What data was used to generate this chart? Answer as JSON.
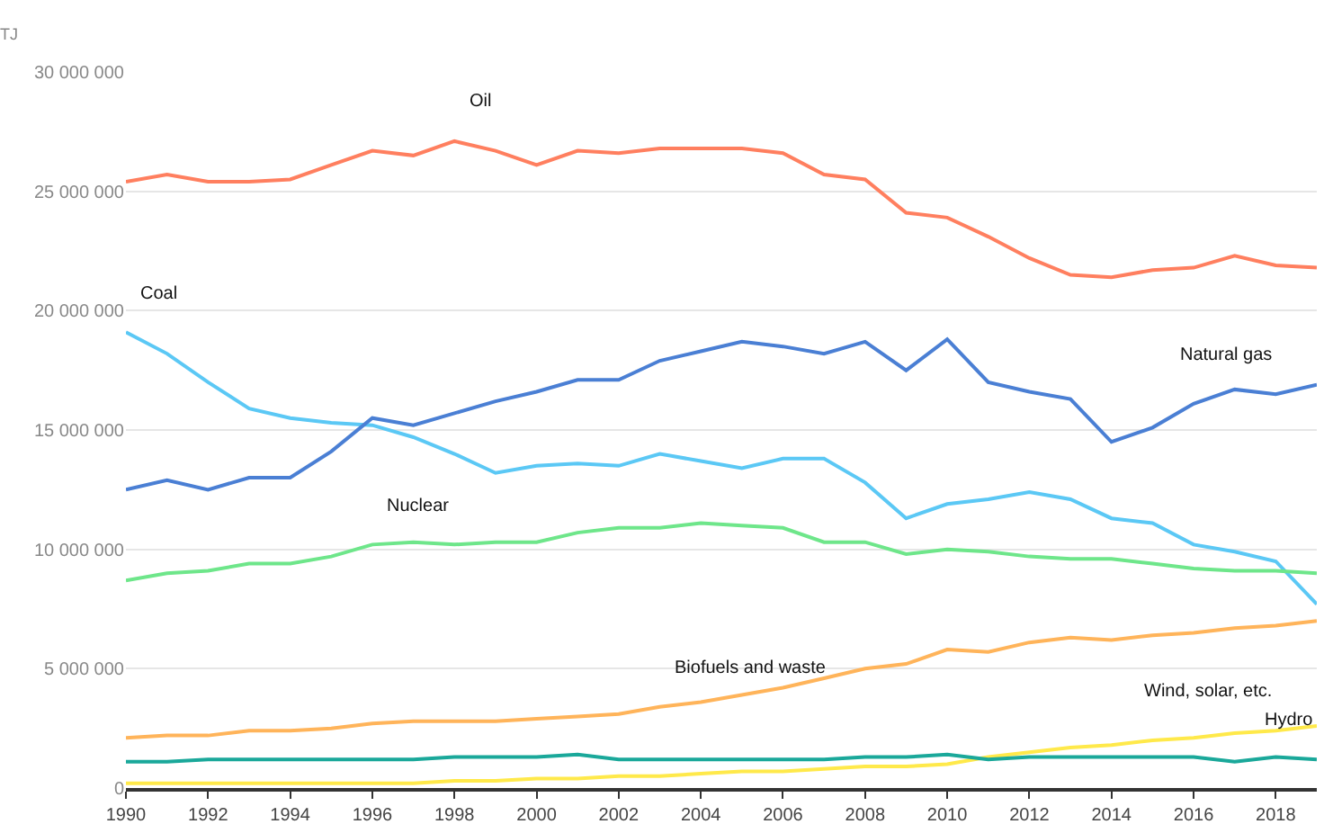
{
  "chart_data": {
    "type": "line",
    "ylabel": "TJ",
    "x": [
      1990,
      1991,
      1992,
      1993,
      1994,
      1995,
      1996,
      1997,
      1998,
      1999,
      2000,
      2001,
      2002,
      2003,
      2004,
      2005,
      2006,
      2007,
      2008,
      2009,
      2010,
      2011,
      2012,
      2013,
      2014,
      2015,
      2016,
      2017,
      2018,
      2019
    ],
    "series": [
      {
        "color": "#ff7f5f",
        "values": [
          25400000,
          25700000,
          25400000,
          25400000,
          25500000,
          26100000,
          26700000,
          26500000,
          27100000,
          26700000,
          26100000,
          26700000,
          26600000,
          26800000,
          26800000,
          26800000,
          26600000,
          25700000,
          25500000,
          24100000,
          23900000,
          23100000,
          22200000,
          21500000,
          21400000,
          21700000,
          21800000,
          22300000,
          21900000,
          21800000
        ]
      },
      {
        "color": "#5bc8f5",
        "values": [
          19100000,
          18200000,
          17000000,
          15900000,
          15500000,
          15300000,
          15200000,
          14700000,
          14000000,
          13200000,
          13500000,
          13600000,
          13500000,
          14000000,
          13700000,
          13400000,
          13800000,
          13800000,
          12800000,
          11300000,
          11900000,
          12100000,
          12400000,
          12100000,
          11300000,
          11100000,
          10200000,
          9900000,
          9500000,
          7700000
        ]
      },
      {
        "color": "#4a7fd4",
        "values": [
          12500000,
          12900000,
          12500000,
          13000000,
          13000000,
          14100000,
          15500000,
          15200000,
          15700000,
          16200000,
          16600000,
          17100000,
          17100000,
          17900000,
          18300000,
          18700000,
          18500000,
          18200000,
          18700000,
          17500000,
          18800000,
          17000000,
          16600000,
          16300000,
          14500000,
          15100000,
          16100000,
          16700000,
          16500000,
          16900000
        ]
      },
      {
        "color": "#6ee68a",
        "values": [
          8700000,
          9000000,
          9100000,
          9400000,
          9400000,
          9700000,
          10200000,
          10300000,
          10200000,
          10300000,
          10300000,
          10700000,
          10900000,
          10900000,
          11100000,
          11000000,
          10900000,
          10300000,
          10300000,
          9800000,
          10000000,
          9900000,
          9700000,
          9600000,
          9600000,
          9400000,
          9200000,
          9100000,
          9100000,
          9000000
        ]
      },
      {
        "color": "#ffb45a",
        "values": [
          2100000,
          2200000,
          2200000,
          2400000,
          2400000,
          2500000,
          2700000,
          2800000,
          2800000,
          2800000,
          2900000,
          3000000,
          3100000,
          3400000,
          3600000,
          3900000,
          4200000,
          4600000,
          5000000,
          5200000,
          5800000,
          5700000,
          6100000,
          6300000,
          6200000,
          6400000,
          6500000,
          6700000,
          6800000,
          7000000
        ]
      },
      {
        "color": "#ffe94a",
        "values": [
          200000,
          200000,
          200000,
          200000,
          200000,
          200000,
          200000,
          200000,
          300000,
          300000,
          400000,
          400000,
          500000,
          500000,
          600000,
          700000,
          700000,
          800000,
          900000,
          900000,
          1000000,
          1300000,
          1500000,
          1700000,
          1800000,
          2000000,
          2100000,
          2300000,
          2400000,
          2600000
        ]
      },
      {
        "color": "#1aa89a",
        "values": [
          1100000,
          1100000,
          1200000,
          1200000,
          1200000,
          1200000,
          1200000,
          1200000,
          1300000,
          1300000,
          1300000,
          1400000,
          1200000,
          1200000,
          1200000,
          1200000,
          1200000,
          1200000,
          1300000,
          1300000,
          1400000,
          1200000,
          1300000,
          1300000,
          1300000,
          1300000,
          1300000,
          1100000,
          1300000,
          1200000
        ]
      }
    ],
    "annotations": [
      {
        "text": "Oil",
        "x": 1998,
        "y": 27100000
      },
      {
        "text": "Coal",
        "x": 1990,
        "y": 19100000
      },
      {
        "text": "Natural gas",
        "x": 2018,
        "y": 16500000
      },
      {
        "text": "Nuclear",
        "x": 1996,
        "y": 10200000
      },
      {
        "text": "Biofuels and waste",
        "x": 2003,
        "y": 3400000
      },
      {
        "text": "Wind, solar, etc.",
        "x": 2018,
        "y": 2400000
      },
      {
        "text": "Hydro",
        "x": 2019,
        "y": 1200000
      }
    ],
    "xlim": [
      1990,
      2019
    ],
    "xticks": [
      1990,
      1992,
      1994,
      1996,
      1998,
      2000,
      2002,
      2004,
      2006,
      2008,
      2010,
      2012,
      2014,
      2016,
      2018
    ],
    "ylim": [
      0,
      30000000
    ],
    "yticks": [
      {
        "value": 0,
        "label": "0"
      },
      {
        "value": 5000000,
        "label": "5 000 000"
      },
      {
        "value": 10000000,
        "label": "10 000 000"
      },
      {
        "value": 15000000,
        "label": "15 000 000"
      },
      {
        "value": 20000000,
        "label": "20 000 000"
      },
      {
        "value": 25000000,
        "label": "25 000 000"
      },
      {
        "value": 30000000,
        "label": "30 000 000"
      }
    ],
    "grid": "y",
    "marker": "none",
    "line_style": "solid"
  }
}
